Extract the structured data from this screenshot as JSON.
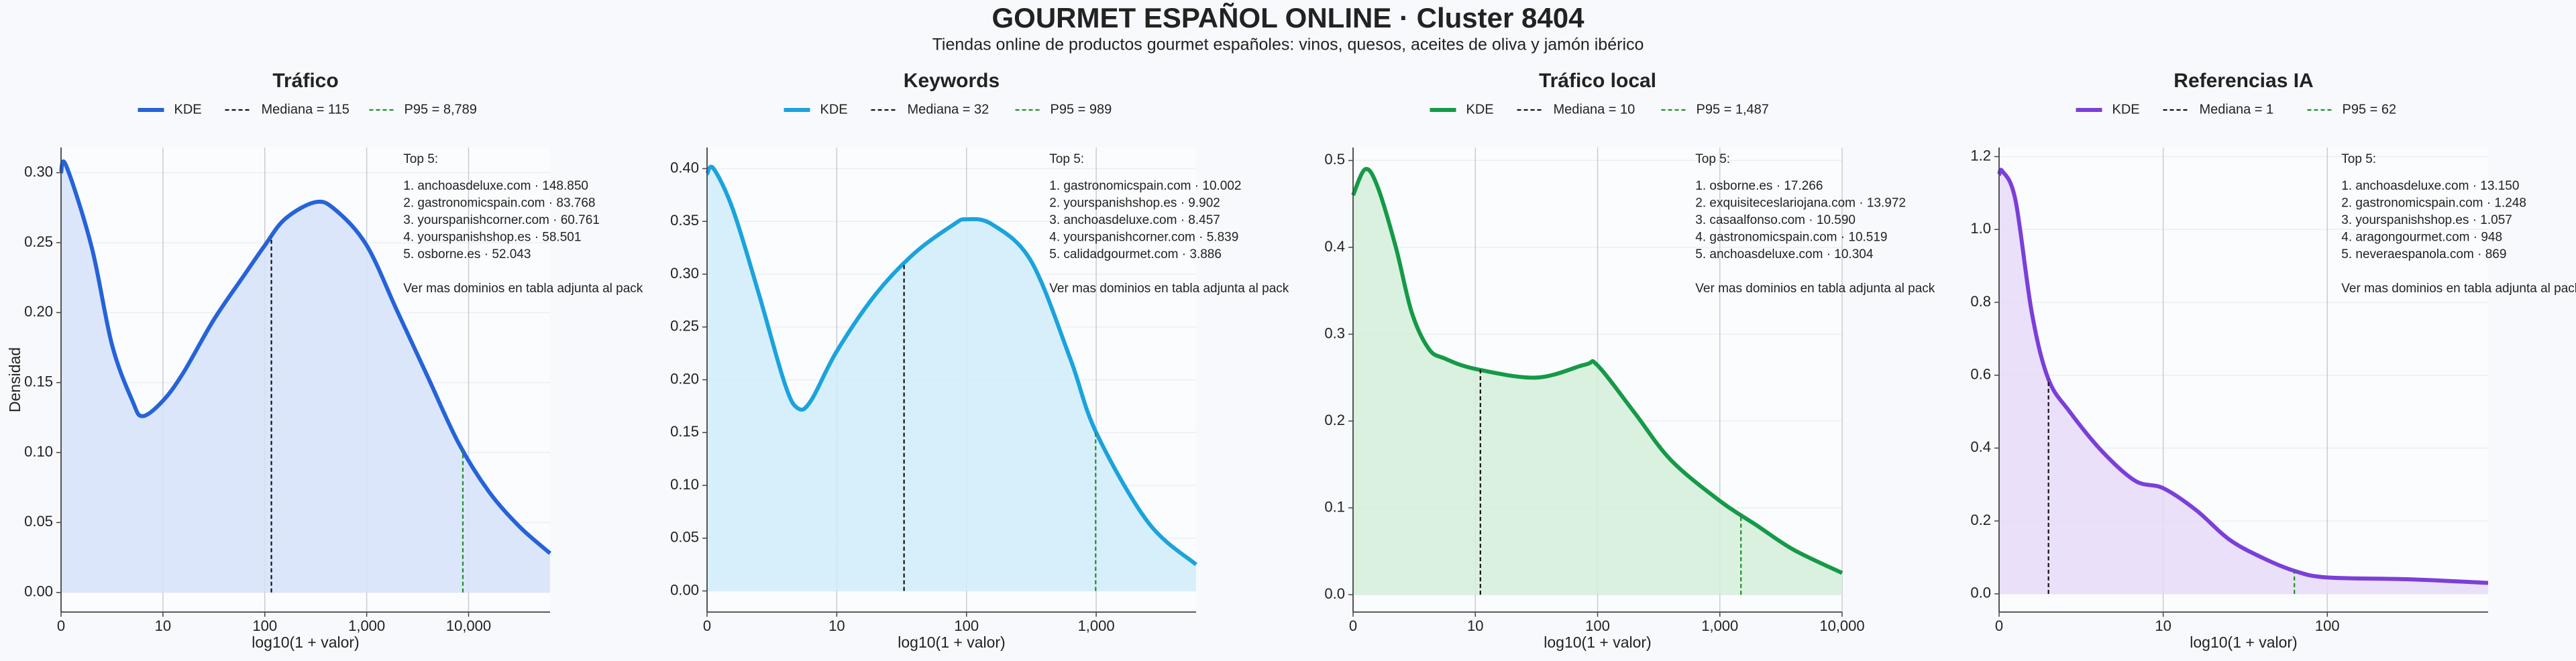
{
  "title": "GOURMET ESPAÑOL ONLINE · Cluster 8404",
  "subtitle": "Tiendas online de productos gourmet españoles: vinos, quesos, aceites de oliva y jamón ibérico",
  "chart_data": [
    {
      "type": "line",
      "title": "Tráfico",
      "xlabel": "log10(1 + valor)",
      "ylabel": "Densidad",
      "x": [
        0,
        0.05,
        0.3,
        0.5,
        0.7,
        0.8,
        1.0,
        1.2,
        1.5,
        1.8,
        2.0,
        2.2,
        2.5,
        2.7,
        3.0,
        3.3,
        3.6,
        3.9,
        4.2,
        4.5,
        4.8
      ],
      "series": [
        {
          "name": "KDE",
          "color": "#2563d9",
          "fill": "#d6e2fa",
          "values": [
            0.3,
            0.305,
            0.247,
            0.177,
            0.137,
            0.126,
            0.137,
            0.157,
            0.195,
            0.227,
            0.248,
            0.267,
            0.279,
            0.273,
            0.248,
            0.201,
            0.154,
            0.107,
            0.072,
            0.047,
            0.028
          ]
        }
      ],
      "median": {
        "value": 115,
        "label": "Mediana = 115"
      },
      "p95": {
        "value": 8789,
        "label": "P95 = 8,789"
      },
      "top_title": "Top 5:",
      "top": [
        "1. anchoasdeluxe.com · 148.850",
        "2. gastronomicspain.com · 83.768",
        "3. yourspanishcorner.com · 60.761",
        "4. yourspanishshop.es · 58.501",
        "5. osborne.es · 52.043"
      ],
      "top_note": "Ver mas dominios en tabla adjunta al pack",
      "xlim": [
        0,
        4.8
      ],
      "xticks": [
        0,
        {
          "value": 1,
          "label": "10"
        },
        {
          "value": 2,
          "label": "100"
        },
        {
          "value": 3,
          "label": "1,000"
        },
        {
          "value": 4,
          "label": "10,000"
        }
      ],
      "ylim": [
        -0.014,
        0.318
      ],
      "yticks": [
        {
          "value": 0,
          "label": "0.00"
        },
        {
          "value": 0.05,
          "label": "0.05"
        },
        {
          "value": 0.1,
          "label": "0.10"
        },
        {
          "value": 0.15,
          "label": "0.15"
        },
        {
          "value": 0.2,
          "label": "0.20"
        },
        {
          "value": 0.25,
          "label": "0.25"
        },
        {
          "value": 0.3,
          "label": "0.30"
        }
      ],
      "grid": true
    },
    {
      "type": "line",
      "title": "Keywords",
      "xlabel": "log10(1 + valor)",
      "x": [
        0,
        0.05,
        0.2,
        0.4,
        0.6,
        0.7,
        0.8,
        1.0,
        1.3,
        1.6,
        1.9,
        2.0,
        2.2,
        2.5,
        2.8,
        3.0,
        3.4,
        3.77
      ],
      "series": [
        {
          "name": "KDE",
          "color": "#1ba3dd",
          "fill": "#d0ecf9",
          "values": [
            0.395,
            0.4,
            0.361,
            0.281,
            0.196,
            0.173,
            0.18,
            0.227,
            0.281,
            0.32,
            0.347,
            0.352,
            0.347,
            0.312,
            0.22,
            0.15,
            0.065,
            0.025
          ]
        }
      ],
      "median": {
        "value": 32,
        "label": "Mediana = 32"
      },
      "p95": {
        "value": 989,
        "label": "P95 = 989"
      },
      "top_title": "Top 5:",
      "top": [
        "1. gastronomicspain.com · 10.002",
        "2. yourspanishshop.es · 9.902",
        "3. anchoasdeluxe.com · 8.457",
        "4. yourspanishcorner.com · 5.839",
        "5. calidadgourmet.com · 3.886"
      ],
      "top_note": "Ver mas dominios en tabla adjunta al pack",
      "xlim": [
        0,
        3.77
      ],
      "xticks": [
        0,
        {
          "value": 1,
          "label": "10"
        },
        {
          "value": 2,
          "label": "100"
        },
        {
          "value": 3,
          "label": "1,000"
        }
      ],
      "ylim": [
        -0.02,
        0.42
      ],
      "yticks": [
        {
          "value": 0,
          "label": "0.00"
        },
        {
          "value": 0.05,
          "label": "0.05"
        },
        {
          "value": 0.1,
          "label": "0.10"
        },
        {
          "value": 0.15,
          "label": "0.15"
        },
        {
          "value": 0.2,
          "label": "0.20"
        },
        {
          "value": 0.25,
          "label": "0.25"
        },
        {
          "value": 0.3,
          "label": "0.30"
        },
        {
          "value": 0.35,
          "label": "0.35"
        },
        {
          "value": 0.4,
          "label": "0.40"
        }
      ],
      "grid": true
    },
    {
      "type": "line",
      "title": "Tráfico local",
      "xlabel": "log10(1 + valor)",
      "x": [
        0,
        0.1,
        0.2,
        0.35,
        0.48,
        0.62,
        0.75,
        1.0,
        1.5,
        1.9,
        2.0,
        2.3,
        2.6,
        3.0,
        3.3,
        3.6,
        4.0
      ],
      "series": [
        {
          "name": "KDE",
          "color": "#159a47",
          "fill": "#d3eedb",
          "values": [
            0.46,
            0.49,
            0.47,
            0.4,
            0.325,
            0.283,
            0.272,
            0.26,
            0.25,
            0.265,
            0.264,
            0.21,
            0.155,
            0.108,
            0.08,
            0.052,
            0.025
          ]
        }
      ],
      "median": {
        "value": 10,
        "label": "Mediana = 10"
      },
      "p95": {
        "value": 1487,
        "label": "P95 = 1,487"
      },
      "top_title": "Top 5:",
      "top": [
        "1. osborne.es · 17.266",
        "2. exquisiteceslariojana.com · 13.972",
        "3. casaalfonso.com · 10.590",
        "4. gastronomicspain.com · 10.519",
        "5. anchoasdeluxe.com · 10.304"
      ],
      "top_note": "Ver mas dominios en tabla adjunta al pack",
      "xlim": [
        0,
        4.0
      ],
      "xticks": [
        0,
        {
          "value": 1,
          "label": "10"
        },
        {
          "value": 2,
          "label": "100"
        },
        {
          "value": 3,
          "label": "1,000"
        },
        {
          "value": 4,
          "label": "10,000"
        }
      ],
      "ylim": [
        -0.02,
        0.515
      ],
      "yticks": [
        {
          "value": 0,
          "label": "0.0"
        },
        {
          "value": 0.1,
          "label": "0.1"
        },
        {
          "value": 0.2,
          "label": "0.2"
        },
        {
          "value": 0.3,
          "label": "0.3"
        },
        {
          "value": 0.4,
          "label": "0.4"
        },
        {
          "value": 0.5,
          "label": "0.5"
        }
      ],
      "grid": true
    },
    {
      "type": "line",
      "title": "Referencias IA",
      "xlabel": "log10(1 + valor)",
      "x": [
        0,
        0.02,
        0.1,
        0.2,
        0.3,
        0.43,
        0.63,
        0.83,
        1.0,
        1.2,
        1.4,
        1.6,
        1.8,
        2.0,
        2.5,
        2.98
      ],
      "series": [
        {
          "name": "KDE",
          "color": "#7b3fd9",
          "fill": "#e6dbf8",
          "values": [
            1.15,
            1.16,
            1.08,
            0.77,
            0.59,
            0.5,
            0.39,
            0.31,
            0.29,
            0.23,
            0.15,
            0.1,
            0.063,
            0.045,
            0.04,
            0.03
          ]
        }
      ],
      "median": {
        "value": 1,
        "label": "Mediana = 1"
      },
      "p95": {
        "value": 62,
        "label": "P95 = 62"
      },
      "top_title": "Top 5:",
      "top": [
        "1. anchoasdeluxe.com · 13.150",
        "2. gastronomicspain.com · 1.248",
        "3. yourspanishshop.es · 1.057",
        "4. aragongourmet.com · 948",
        "5. neveraespanola.com · 869"
      ],
      "top_note": "Ver mas dominios en tabla adjunta al pack",
      "xlim": [
        0,
        2.98
      ],
      "xticks": [
        0,
        {
          "value": 1,
          "label": "10"
        },
        {
          "value": 2,
          "label": "100"
        }
      ],
      "ylim": [
        -0.05,
        1.225
      ],
      "yticks": [
        {
          "value": 0,
          "label": "0.0"
        },
        {
          "value": 0.2,
          "label": "0.2"
        },
        {
          "value": 0.4,
          "label": "0.4"
        },
        {
          "value": 0.6,
          "label": "0.6"
        },
        {
          "value": 0.8,
          "label": "0.8"
        },
        {
          "value": 1.0,
          "label": "1.0"
        },
        {
          "value": 1.2,
          "label": "1.2"
        }
      ],
      "grid": true
    }
  ]
}
